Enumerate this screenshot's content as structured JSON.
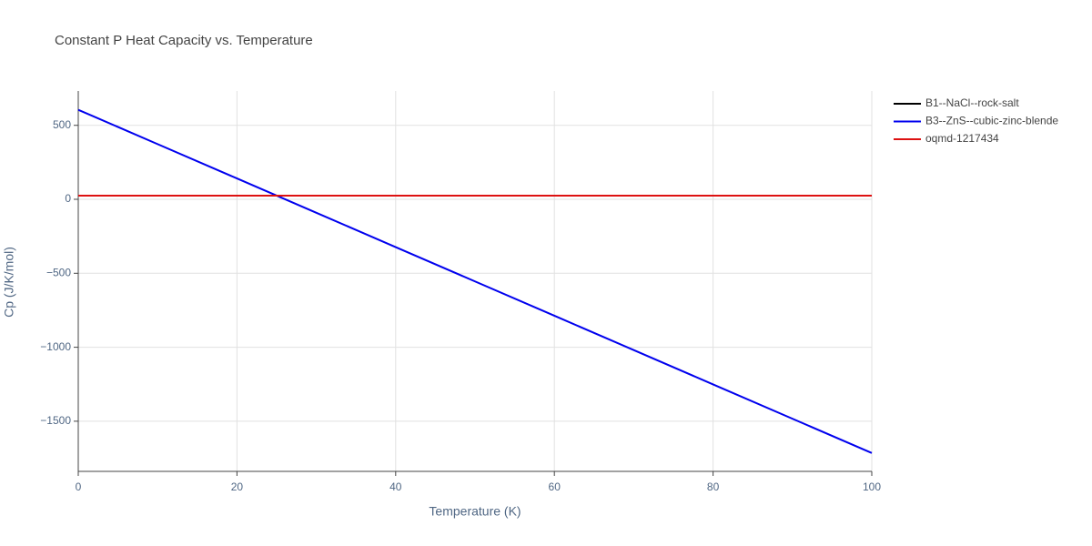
{
  "chart_data": {
    "type": "line",
    "title": "Constant P Heat Capacity vs. Temperature",
    "x_label": "Temperature (K)",
    "y_label": "Cp (J/K/mol)",
    "x": [
      0,
      10,
      20,
      30,
      40,
      50,
      60,
      70,
      80,
      90,
      100
    ],
    "series": [
      {
        "name": "B1--NaCl--rock-salt",
        "color": "#000000",
        "values": [
          25,
          25,
          25,
          25,
          25,
          25,
          25,
          25,
          25,
          25,
          25
        ]
      },
      {
        "name": "B3--ZnS--cubic-zinc-blende",
        "color": "#0000ee",
        "values": [
          605,
          373,
          141,
          -91,
          -323,
          -555,
          -787,
          -1019,
          -1251,
          -1483,
          -1715
        ]
      },
      {
        "name": "oqmd-1217434",
        "color": "#dd1111",
        "values": [
          25,
          25,
          25,
          25,
          25,
          25,
          25,
          25,
          25,
          25,
          25
        ]
      }
    ],
    "xlim": [
      0,
      100
    ],
    "xticks": [
      0,
      20,
      40,
      60,
      80,
      100
    ],
    "ylim": [
      -1839,
      732
    ],
    "yticks": [
      {
        "value": -1500,
        "label": "−1500"
      },
      {
        "value": -1000,
        "label": "−1000"
      },
      {
        "value": -500,
        "label": "−500"
      },
      0,
      500
    ],
    "grid": true,
    "legend": "right"
  }
}
